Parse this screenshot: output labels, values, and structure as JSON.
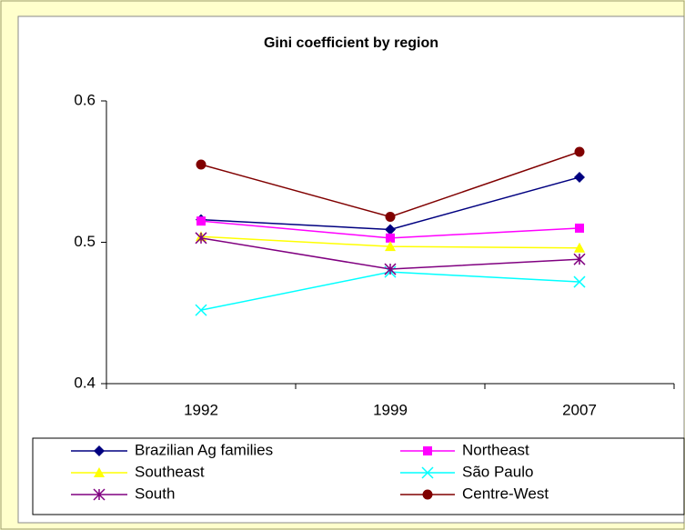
{
  "chart_data": {
    "type": "line",
    "title": "Gini coefficient by region",
    "categories": [
      "1992",
      "1999",
      "2007"
    ],
    "ylim": [
      0.4,
      0.6
    ],
    "yticks": [
      0.4,
      0.5,
      0.6
    ],
    "series": [
      {
        "name": "Brazilian Ag families",
        "color": "#000080",
        "marker": "diamond",
        "values": [
          0.516,
          0.509,
          0.546
        ]
      },
      {
        "name": "Northeast",
        "color": "#ff00ff",
        "marker": "square",
        "values": [
          0.515,
          0.503,
          0.51
        ]
      },
      {
        "name": "Southeast",
        "color": "#ffff00",
        "marker": "triangle",
        "values": [
          0.504,
          0.497,
          0.496
        ]
      },
      {
        "name": "São Paulo",
        "color": "#00ffff",
        "marker": "x",
        "values": [
          0.452,
          0.479,
          0.472
        ]
      },
      {
        "name": "South",
        "color": "#800080",
        "marker": "star",
        "values": [
          0.503,
          0.481,
          0.488
        ]
      },
      {
        "name": "Centre-West",
        "color": "#800000",
        "marker": "circle",
        "values": [
          0.555,
          0.518,
          0.564
        ]
      }
    ]
  }
}
